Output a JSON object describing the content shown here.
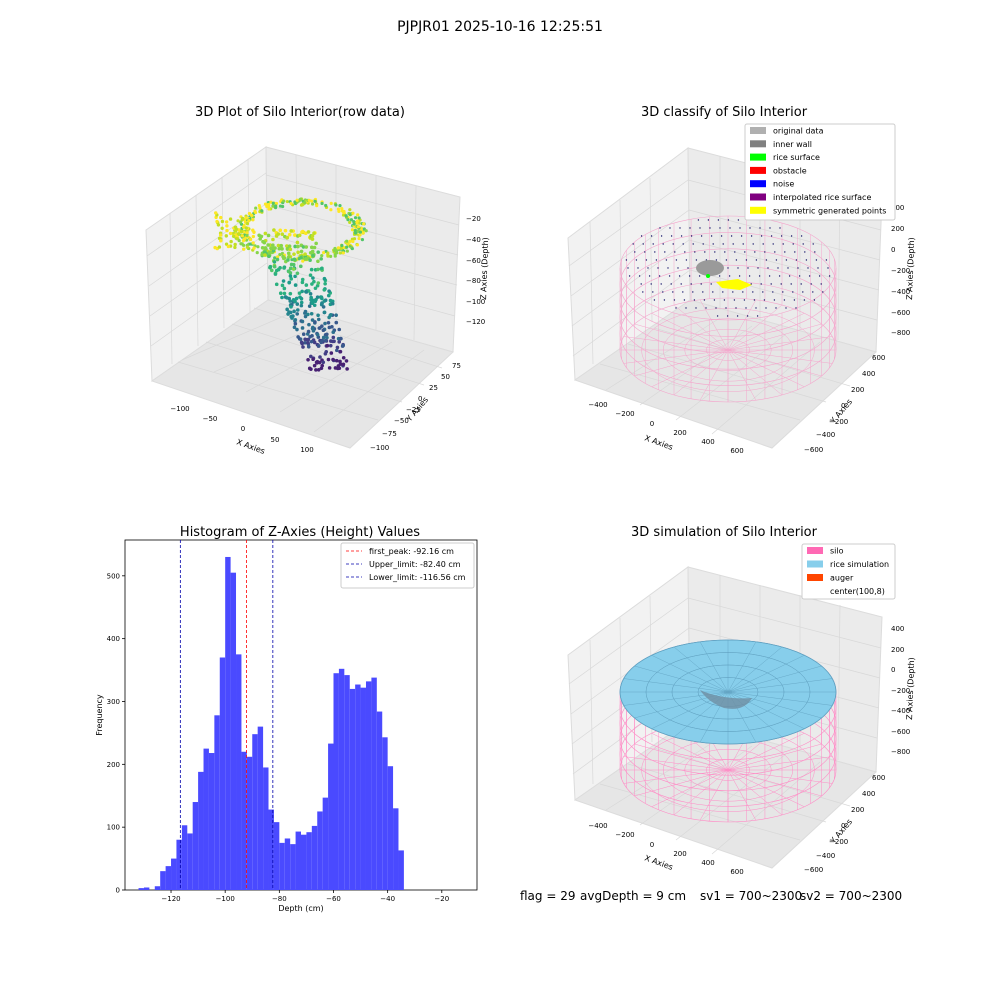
{
  "suptitle": "PJPJR01 2025-10-16 12:25:51",
  "panels": {
    "raw": {
      "title": "3D Plot of Silo Interior(row data)",
      "xlabel": "X Axies",
      "ylabel": "Y Axies",
      "zlabel": "Z Axies (Depth)",
      "xticks": [
        "−100",
        "−50",
        "0",
        "50",
        "100"
      ],
      "yticks": [
        "75",
        "50",
        "25",
        "0",
        "−25",
        "−50",
        "−75",
        "−100"
      ],
      "zticks": [
        "−20",
        "−40",
        "−60",
        "−80",
        "−100",
        "−120"
      ]
    },
    "classify": {
      "title": "3D classify of Silo Interior",
      "xlabel": "X Axies",
      "ylabel": "Y Axies",
      "zlabel": "Z Axies (Depth)",
      "xticks": [
        "−400",
        "−200",
        "0",
        "200",
        "400",
        "600"
      ],
      "yticks": [
        "600",
        "400",
        "200",
        "0",
        "−200",
        "−400",
        "−600"
      ],
      "zticks": [
        "400",
        "200",
        "0",
        "−200",
        "−400",
        "−600",
        "−800"
      ],
      "legend": [
        {
          "label": "original data",
          "color": "#b0b0b0"
        },
        {
          "label": "inner wall",
          "color": "#808080"
        },
        {
          "label": "rice surface",
          "color": "#00ff00"
        },
        {
          "label": "obstacle",
          "color": "#ff0000"
        },
        {
          "label": "noise",
          "color": "#0000ff"
        },
        {
          "label": "interpolated rice surface",
          "color": "#800080"
        },
        {
          "label": "symmetric generated points",
          "color": "#ffff00"
        }
      ]
    },
    "simulation": {
      "title": "3D simulation of Silo Interior",
      "xlabel": "X Axies",
      "ylabel": "Y Axies",
      "zlabel": "Z Axies (Depth)",
      "xticks": [
        "−400",
        "−200",
        "0",
        "200",
        "400",
        "600"
      ],
      "yticks": [
        "600",
        "400",
        "200",
        "0",
        "−200",
        "−400",
        "−600"
      ],
      "zticks": [
        "400",
        "200",
        "0",
        "−200",
        "−400",
        "−600",
        "−800"
      ],
      "legend": [
        {
          "label": "silo",
          "color": "#ff69b4"
        },
        {
          "label": "rice simulation",
          "color": "#87ceeb"
        },
        {
          "label": "auger",
          "color": "#ff4500"
        },
        {
          "label": "center(100,8)",
          "color": "none"
        }
      ]
    }
  },
  "chart_data": [
    {
      "type": "bar",
      "title": "Histogram of Z-Axies (Height) Values",
      "xlabel": "Depth (cm)",
      "ylabel": "Frequency",
      "xlim": [
        -137,
        -7
      ],
      "ylim": [
        0,
        557
      ],
      "xticks": [
        -120,
        -100,
        -80,
        -60,
        -40,
        -20
      ],
      "yticks": [
        0,
        100,
        200,
        300,
        400,
        500
      ],
      "bar_color": "#4a4aff",
      "bin_start": -132,
      "bin_width": 2.0,
      "values": [
        3,
        4,
        0,
        6,
        30,
        38,
        50,
        80,
        103,
        90,
        140,
        188,
        225,
        218,
        278,
        370,
        530,
        505,
        375,
        220,
        212,
        248,
        260,
        195,
        128,
        108,
        75,
        82,
        73,
        93,
        88,
        92,
        102,
        125,
        147,
        233,
        345,
        352,
        342,
        320,
        327,
        322,
        332,
        338,
        284,
        243,
        197,
        130,
        63
      ],
      "vlines": [
        {
          "x": -92.16,
          "color": "#ff0000",
          "label": "first_peak: -92.16 cm"
        },
        {
          "x": -82.4,
          "color": "#0000aa",
          "label": "Upper_limit: -82.40 cm"
        },
        {
          "x": -116.56,
          "color": "#0000aa",
          "label": "Lower_limit: -116.56 cm"
        }
      ],
      "legend_position": "upper right"
    }
  ],
  "footer": {
    "flag": "flag = 29",
    "avg_depth": "avgDepth = 9 cm",
    "sv1": "sv1 = 700~2300",
    "sv2": "sv2 = 700~2300"
  }
}
